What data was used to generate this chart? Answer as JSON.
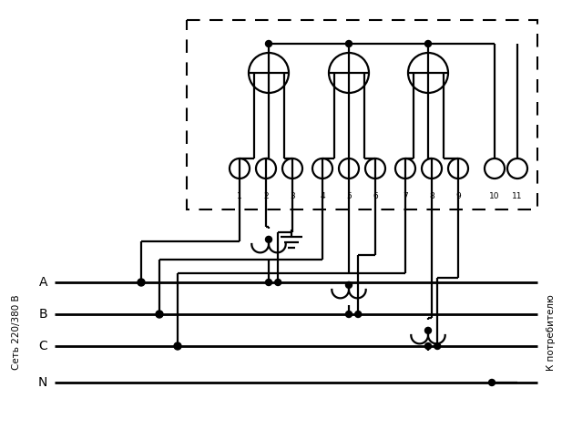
{
  "bg_color": "#ffffff",
  "line_color": "#000000",
  "lw": 1.6,
  "fig_width": 6.17,
  "fig_height": 4.82,
  "dpi": 100,
  "left_label": "Сеть 220/380 В",
  "right_label": "К потребителю",
  "phase_labels": [
    "A",
    "B",
    "C",
    "N"
  ],
  "terminal_numbers": [
    "1",
    "2",
    "3",
    "4",
    "5",
    "6",
    "7",
    "8",
    "9",
    "10",
    "11"
  ]
}
